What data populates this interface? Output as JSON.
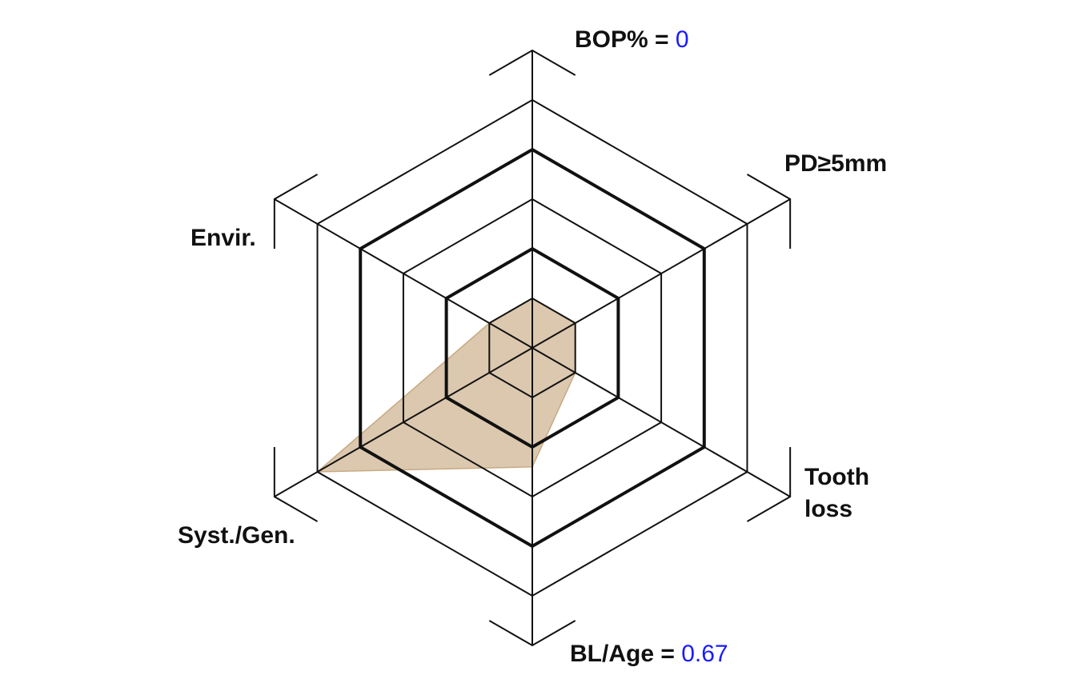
{
  "chart_data": {
    "type": "radar",
    "title": "",
    "axes": [
      {
        "label": "BOP% = ",
        "value_text": "0",
        "score": 1
      },
      {
        "label": "PD≥5mm",
        "score": 1
      },
      {
        "label": "Tooth",
        "label2": "loss",
        "score": 1
      },
      {
        "label": "BL/Age = ",
        "value_text": "0.67",
        "score": 2.4
      },
      {
        "label": "Syst./Gen.",
        "score": 5
      },
      {
        "label": "Envir.",
        "score": 1
      }
    ],
    "levels": 5,
    "axis_max": 6,
    "thick_levels": [
      2,
      4
    ],
    "colors": {
      "fill": "#c8aa82",
      "grid": "#111111",
      "value_text": "#1a1aff"
    }
  }
}
